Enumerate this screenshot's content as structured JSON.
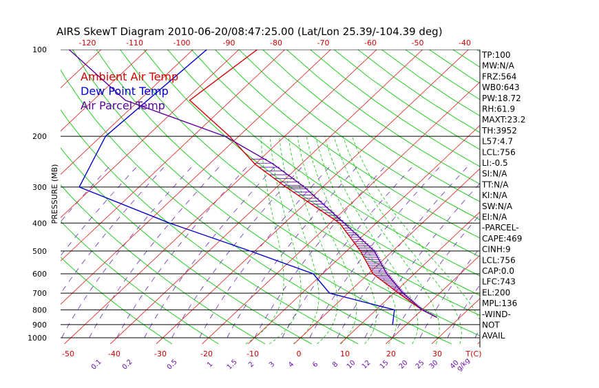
{
  "title": "AIRS SkewT Diagram 2010-06-20/08:47:25.00 (Lat/Lon 25.39/-104.39 deg)",
  "chart_data": {
    "type": "line",
    "title": "AIRS SkewT Diagram 2010-06-20/08:47:25.00 (Lat/Lon 25.39/-104.39 deg)",
    "ylabel": "PRESSURE (MB)",
    "xlabel": "T(C)",
    "top_axis_ticks": [
      "-120",
      "-110",
      "-100",
      "-90",
      "-80",
      "-70",
      "-60",
      "-50",
      "-40"
    ],
    "bottom_axis_ticks": [
      "-50",
      "-40",
      "-30",
      "-20",
      "-10",
      "0",
      "10",
      "20",
      "30",
      "T(C)"
    ],
    "pressure_ticks": [
      "100",
      "200",
      "300",
      "400",
      "500",
      "600",
      "700",
      "800",
      "900",
      "1000"
    ],
    "mixing_ratio_ticks": [
      "0.1",
      "0.2",
      "0.5",
      "1",
      "1.5",
      "2",
      "3",
      "4",
      "6",
      "8",
      "10",
      "12",
      "15",
      "20",
      "25",
      "30",
      "40",
      "g/kg"
    ],
    "legend": [
      {
        "label": "Ambient Air Temp",
        "color": "#d40000"
      },
      {
        "label": "Dew Point Temp",
        "color": "#0000cc"
      },
      {
        "label": "Air Parcel Temp",
        "color": "#5b00a0"
      }
    ],
    "series": [
      {
        "name": "Ambient Air Temp",
        "color": "#d40000",
        "points": [
          [
            100,
            -76
          ],
          [
            150,
            -79
          ],
          [
            200,
            -62
          ],
          [
            250,
            -50
          ],
          [
            300,
            -38
          ],
          [
            400,
            -18
          ],
          [
            500,
            -7
          ],
          [
            600,
            1
          ],
          [
            700,
            11
          ],
          [
            800,
            20
          ],
          [
            850,
            25
          ]
        ]
      },
      {
        "name": "Dew Point Temp",
        "color": "#0000cc",
        "points": [
          [
            100,
            -87
          ],
          [
            200,
            -89
          ],
          [
            300,
            -83
          ],
          [
            400,
            -55
          ],
          [
            500,
            -31
          ],
          [
            600,
            -12
          ],
          [
            700,
            -4
          ],
          [
            800,
            14
          ],
          [
            900,
            17
          ]
        ]
      },
      {
        "name": "Air Parcel Temp",
        "color": "#5b00a0",
        "points": [
          [
            100,
            -117
          ],
          [
            150,
            -93
          ],
          [
            200,
            -63
          ],
          [
            250,
            -46
          ],
          [
            300,
            -34
          ],
          [
            400,
            -17
          ],
          [
            500,
            -4
          ],
          [
            600,
            4
          ],
          [
            700,
            12
          ],
          [
            800,
            20
          ],
          [
            850,
            25
          ]
        ]
      }
    ]
  },
  "indices": [
    "TP:100",
    "MW:N/A",
    "FRZ:564",
    "WB0:643",
    "PW:18.72",
    "RH:61.9",
    "MAXT:23.2",
    "TH:3952",
    "L57:4.7",
    "LCL:756",
    "LI:-0.5",
    "SI:N/A",
    "TT:N/A",
    "KI:N/A",
    "SW:N/A",
    "EI:N/A",
    "-PARCEL-",
    "CAPE:469",
    "CINH:9",
    "LCL:756",
    "CAP:0.0",
    "LFC:743",
    "EL:200",
    "MPL:136",
    "-WIND-",
    "NOT",
    "AVAIL"
  ]
}
